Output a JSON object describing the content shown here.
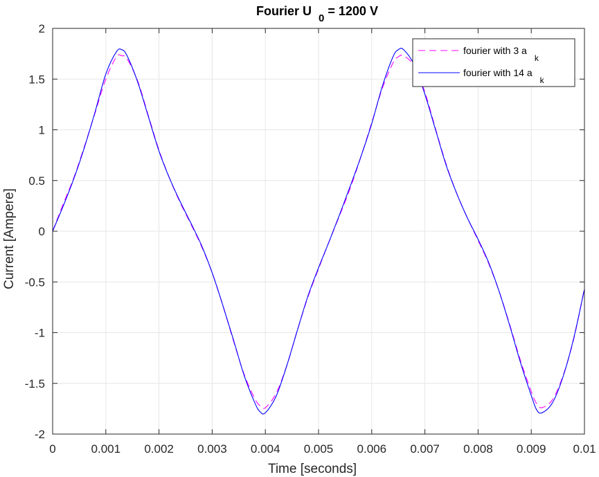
{
  "chart_data": {
    "type": "line",
    "title": "Fourier U",
    "title_sub": "0",
    "title_rest": " = 1200 V",
    "xlabel": "Time [seconds]",
    "ylabel": "Current [Ampere]",
    "xlim": [
      0,
      0.01
    ],
    "ylim": [
      -2,
      2
    ],
    "grid": true,
    "legend_position": "top-right",
    "x_ticks": [
      0,
      0.001,
      0.002,
      0.003,
      0.004,
      0.005,
      0.006,
      0.007,
      0.008,
      0.009,
      0.01
    ],
    "x_tick_labels": [
      "0",
      "0.001",
      "0.002",
      "0.003",
      "0.004",
      "0.005",
      "0.006",
      "0.007",
      "0.008",
      "0.009",
      "0.01"
    ],
    "y_ticks": [
      -2,
      -1.5,
      -1,
      -0.5,
      0,
      0.5,
      1,
      1.5,
      2
    ],
    "y_tick_labels": [
      "-2",
      "-1.5",
      "-1",
      "-0.5",
      "0",
      "0.5",
      "1",
      "1.5",
      "2"
    ],
    "x": [
      0,
      0.0002,
      0.0004,
      0.0006,
      0.0008,
      0.001,
      0.0012,
      0.0013,
      0.0014,
      0.0016,
      0.0018,
      0.002,
      0.0022,
      0.0024,
      0.0026,
      0.0028,
      0.003,
      0.0032,
      0.0034,
      0.0036,
      0.0038,
      0.0039,
      0.004,
      0.0042,
      0.0044,
      0.0046,
      0.0048,
      0.005,
      0.0052,
      0.0054,
      0.0056,
      0.0058,
      0.006,
      0.0062,
      0.0064,
      0.0065,
      0.0066,
      0.0068,
      0.007,
      0.0072,
      0.0074,
      0.0076,
      0.0078,
      0.008,
      0.0082,
      0.0084,
      0.0086,
      0.0088,
      0.009,
      0.0091,
      0.0092,
      0.0094,
      0.0096,
      0.0098,
      0.01
    ],
    "series": [
      {
        "name": "fourier with 3 a",
        "name_sub": "k",
        "color": "#ff00ff",
        "dash": "dashed",
        "values": [
          0,
          0.27,
          0.53,
          0.84,
          1.17,
          1.5,
          1.72,
          1.73,
          1.7,
          1.48,
          1.14,
          0.8,
          0.52,
          0.28,
          0.07,
          -0.15,
          -0.41,
          -0.73,
          -1.08,
          -1.41,
          -1.65,
          -1.72,
          -1.74,
          -1.6,
          -1.33,
          -0.98,
          -0.65,
          -0.37,
          -0.1,
          0.16,
          0.43,
          0.74,
          1.07,
          1.41,
          1.66,
          1.72,
          1.73,
          1.63,
          1.37,
          1.01,
          0.66,
          0.37,
          0.13,
          -0.09,
          -0.32,
          -0.6,
          -0.93,
          -1.28,
          -1.58,
          -1.7,
          -1.74,
          -1.66,
          -1.42,
          -1.06,
          -0.56
        ]
      },
      {
        "name": "fourier with 14 a",
        "name_sub": "k",
        "color": "#0000ff",
        "dash": "solid",
        "values": [
          0,
          0.25,
          0.52,
          0.83,
          1.18,
          1.55,
          1.77,
          1.79,
          1.73,
          1.47,
          1.13,
          0.79,
          0.52,
          0.29,
          0.08,
          -0.14,
          -0.41,
          -0.73,
          -1.07,
          -1.42,
          -1.69,
          -1.78,
          -1.79,
          -1.63,
          -1.33,
          -0.98,
          -0.64,
          -0.36,
          -0.1,
          0.17,
          0.45,
          0.74,
          1.06,
          1.43,
          1.72,
          1.79,
          1.79,
          1.64,
          1.35,
          1.0,
          0.65,
          0.37,
          0.13,
          -0.08,
          -0.31,
          -0.6,
          -0.94,
          -1.3,
          -1.62,
          -1.76,
          -1.79,
          -1.69,
          -1.43,
          -1.05,
          -0.57
        ]
      }
    ]
  }
}
